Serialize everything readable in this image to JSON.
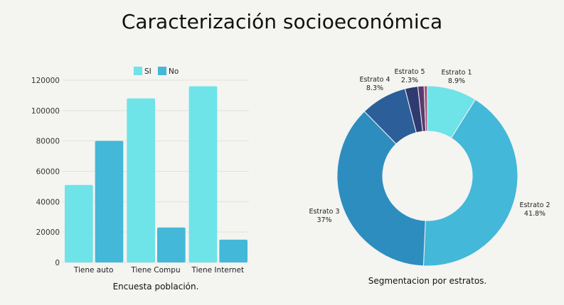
{
  "title": "Caracterización socioeconómica",
  "chart_data": [
    {
      "type": "bar",
      "title": "",
      "caption": "Encuesta población.",
      "categories": [
        "Tiene auto",
        "Tiene Compu",
        "Tiene Internet"
      ],
      "series": [
        {
          "name": "SI",
          "values": [
            51000,
            108000,
            116000
          ],
          "color": "#6ee3e8"
        },
        {
          "name": "No",
          "values": [
            80000,
            23000,
            15000
          ],
          "color": "#43b8d8"
        }
      ],
      "ylim": [
        0,
        120000
      ],
      "yticks": [
        "0",
        "20000",
        "40000",
        "60000",
        "80000",
        "100000",
        "120000"
      ],
      "grid": true,
      "legend": "top"
    },
    {
      "type": "pie",
      "donut": true,
      "caption": "Segmentacion por estratos.",
      "slices": [
        {
          "label": "Estrato 1",
          "value": 8.9,
          "text": "8.9%",
          "color": "#6ee3e8"
        },
        {
          "label": "Estrato 2",
          "value": 41.8,
          "text": "41.8%",
          "color": "#43b8d8"
        },
        {
          "label": "Estrato 3",
          "value": 37,
          "text": "37%",
          "color": "#2e8dbf"
        },
        {
          "label": "Estrato 4",
          "value": 8.3,
          "text": "8.3%",
          "color": "#2c5f9a"
        },
        {
          "label": "Estrato 5",
          "value": 2.3,
          "text": "2.3%",
          "color": "#2e3a70"
        },
        {
          "label": "",
          "value": 1.1,
          "text": "",
          "color": "#5a3a70"
        },
        {
          "label": "",
          "value": 0.6,
          "text": "",
          "color": "#a05a80"
        }
      ]
    }
  ]
}
